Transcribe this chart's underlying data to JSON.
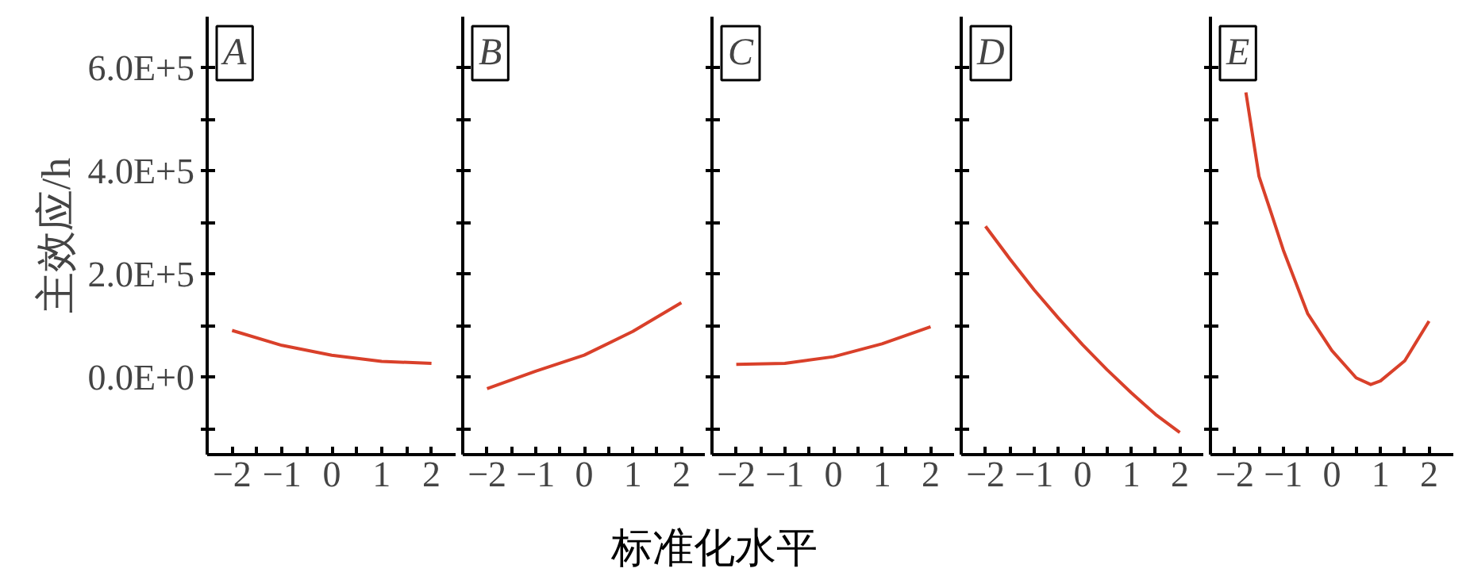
{
  "chart_data": [
    {
      "type": "line",
      "title": "A",
      "ylabel": "主效应/h",
      "xlabel": "标准化水平",
      "x": [
        -2,
        -1,
        0,
        1,
        2
      ],
      "series": [
        {
          "color": "#d9402a",
          "values": [
            91000,
            62000,
            43000,
            31000,
            27000
          ]
        }
      ],
      "xlim": [
        -2.5,
        2.5
      ],
      "ylim": [
        -150000,
        700000
      ],
      "xticks": [
        {
          "value": -2,
          "label": "−2"
        },
        {
          "value": -1.5,
          "label": null
        },
        {
          "value": -1,
          "label": "−1"
        },
        {
          "value": -0.5,
          "label": null
        },
        0,
        {
          "value": 0.5,
          "label": null
        },
        1,
        {
          "value": 1.5,
          "label": null
        },
        2
      ],
      "yticks": [
        {
          "value": -100000,
          "label": null
        },
        {
          "value": 0,
          "label": "0.0E+0"
        },
        {
          "value": 100000,
          "label": null
        },
        {
          "value": 200000,
          "label": "2.0E+5"
        },
        {
          "value": 300000,
          "label": null
        },
        {
          "value": 400000,
          "label": "4.0E+5"
        },
        {
          "value": 500000,
          "label": null
        },
        {
          "value": 600000,
          "label": "6.0E+5"
        }
      ],
      "grid": false
    },
    {
      "type": "line",
      "title": "B",
      "x": [
        -2,
        -1,
        0,
        1,
        2
      ],
      "series": [
        {
          "color": "#d9402a",
          "values": [
            -22000,
            12000,
            43000,
            89000,
            145000
          ]
        }
      ],
      "xlim": [
        -2.5,
        2.5
      ],
      "ylim": [
        -150000,
        700000
      ],
      "xticks": [
        {
          "value": -2,
          "label": "−2"
        },
        {
          "value": -1.5,
          "label": null
        },
        {
          "value": -1,
          "label": "−1"
        },
        {
          "value": -0.5,
          "label": null
        },
        0,
        {
          "value": 0.5,
          "label": null
        },
        1,
        {
          "value": 1.5,
          "label": null
        },
        2
      ],
      "yticks": [
        {
          "value": -100000,
          "label": null
        },
        {
          "value": 0,
          "label": null
        },
        {
          "value": 100000,
          "label": null
        },
        {
          "value": 200000,
          "label": null
        },
        {
          "value": 300000,
          "label": null
        },
        {
          "value": 400000,
          "label": null
        },
        {
          "value": 500000,
          "label": null
        },
        {
          "value": 600000,
          "label": null
        }
      ],
      "tick_labels": "x",
      "grid": false
    },
    {
      "type": "line",
      "title": "C",
      "x": [
        -2,
        -1,
        0,
        1,
        2
      ],
      "series": [
        {
          "color": "#d9402a",
          "values": [
            25000,
            27000,
            40000,
            65000,
            98000
          ]
        }
      ],
      "xlim": [
        -2.5,
        2.5
      ],
      "ylim": [
        -150000,
        700000
      ],
      "xticks": [
        {
          "value": -2,
          "label": "−2"
        },
        {
          "value": -1.5,
          "label": null
        },
        {
          "value": -1,
          "label": "−1"
        },
        {
          "value": -0.5,
          "label": null
        },
        0,
        {
          "value": 0.5,
          "label": null
        },
        1,
        {
          "value": 1.5,
          "label": null
        },
        2
      ],
      "yticks": [
        {
          "value": -100000,
          "label": null
        },
        {
          "value": 0,
          "label": null
        },
        {
          "value": 100000,
          "label": null
        },
        {
          "value": 200000,
          "label": null
        },
        {
          "value": 300000,
          "label": null
        },
        {
          "value": 400000,
          "label": null
        },
        {
          "value": 500000,
          "label": null
        },
        {
          "value": 600000,
          "label": null
        }
      ],
      "tick_labels": "x",
      "grid": false
    },
    {
      "type": "line",
      "title": "D",
      "x": [
        -2,
        -1.5,
        -1,
        -0.5,
        0,
        0.5,
        1,
        1.5,
        2
      ],
      "series": [
        {
          "color": "#d9402a",
          "values": [
            293000,
            230000,
            170000,
            115000,
            63000,
            15000,
            -30000,
            -72000,
            -107000
          ]
        }
      ],
      "xlim": [
        -2.5,
        2.5
      ],
      "ylim": [
        -150000,
        700000
      ],
      "xticks": [
        {
          "value": -2,
          "label": "−2"
        },
        {
          "value": -1.5,
          "label": null
        },
        {
          "value": -1,
          "label": "−1"
        },
        {
          "value": -0.5,
          "label": null
        },
        0,
        {
          "value": 0.5,
          "label": null
        },
        1,
        {
          "value": 1.5,
          "label": null
        },
        2
      ],
      "yticks": [
        {
          "value": -100000,
          "label": null
        },
        {
          "value": 0,
          "label": null
        },
        {
          "value": 100000,
          "label": null
        },
        {
          "value": 200000,
          "label": null
        },
        {
          "value": 300000,
          "label": null
        },
        {
          "value": 400000,
          "label": null
        },
        {
          "value": 500000,
          "label": null
        },
        {
          "value": 600000,
          "label": null
        }
      ],
      "tick_labels": "x",
      "grid": false
    },
    {
      "type": "line",
      "title": "E",
      "x": [
        -1.77,
        -1.5,
        -1.25,
        -1,
        -0.5,
        0,
        0.5,
        0.8,
        1,
        1.5,
        2
      ],
      "series": [
        {
          "color": "#d9402a",
          "values": [
            553000,
            390000,
            319000,
            247000,
            124000,
            52000,
            -1000,
            -14000,
            -7000,
            32000,
            109000
          ]
        }
      ],
      "xlim": [
        -2.5,
        2.5
      ],
      "ylim": [
        -150000,
        700000
      ],
      "xticks": [
        {
          "value": -2,
          "label": "−2"
        },
        {
          "value": -1.5,
          "label": null
        },
        {
          "value": -1,
          "label": "−1"
        },
        {
          "value": -0.5,
          "label": null
        },
        0,
        {
          "value": 0.5,
          "label": null
        },
        1,
        {
          "value": 1.5,
          "label": null
        },
        2
      ],
      "yticks": [
        {
          "value": -100000,
          "label": null
        },
        {
          "value": 0,
          "label": null
        },
        {
          "value": 100000,
          "label": null
        },
        {
          "value": 200000,
          "label": null
        },
        {
          "value": 300000,
          "label": null
        },
        {
          "value": 400000,
          "label": null
        },
        {
          "value": 500000,
          "label": null
        },
        {
          "value": 600000,
          "label": null
        }
      ],
      "tick_labels": "x",
      "grid": false
    }
  ]
}
